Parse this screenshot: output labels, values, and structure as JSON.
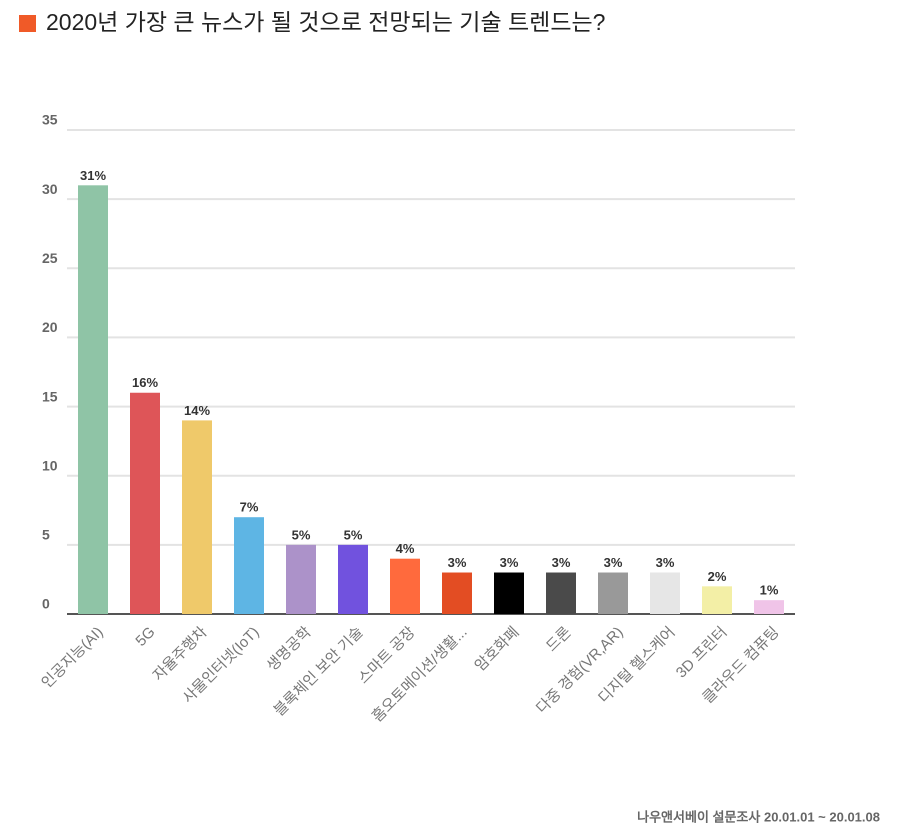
{
  "chart_data": {
    "type": "bar",
    "title": "2020년 가장 큰 뉴스가 될 것으로 전망되는 기술 트렌드는?",
    "source": "나우앤서베이 설문조사 20.01.01 ~ 20.01.08",
    "categories": [
      "인공지능(AI)",
      "5G",
      "자율주행차",
      "사물인터넷(IoT)",
      "생명공학",
      "블록체인 보안 기술",
      "스마트 공장",
      "홈오토메이션/생활...",
      "암호화폐",
      "드론",
      "다중 경험(VR,AR)",
      "디지털 헬스케어",
      "3D 프린터",
      "클라우드 컴퓨팅"
    ],
    "values": [
      31,
      16,
      14,
      7,
      5,
      5,
      4,
      3,
      3,
      3,
      3,
      3,
      2,
      1
    ],
    "value_labels": [
      "31%",
      "16%",
      "14%",
      "7%",
      "5%",
      "5%",
      "4%",
      "3%",
      "3%",
      "3%",
      "3%",
      "3%",
      "2%",
      "1%"
    ],
    "colors": [
      "#8fc4a6",
      "#de5558",
      "#efc96a",
      "#5eb5e4",
      "#ac92c9",
      "#7152de",
      "#ff6a3d",
      "#e34d23",
      "#000000",
      "#4a4a4a",
      "#999999",
      "#e6e6e6",
      "#f3efa6",
      "#f0c4e8"
    ],
    "ylim": [
      0,
      35
    ],
    "yticks": [
      0,
      5,
      10,
      15,
      20,
      25,
      30,
      35
    ],
    "grid": true
  }
}
